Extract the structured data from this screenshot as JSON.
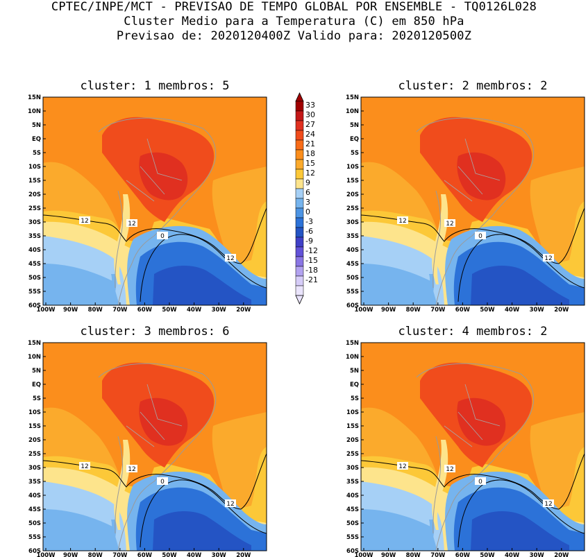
{
  "header": {
    "line1": "CPTEC/INPE/MCT - PREVISAO DE TEMPO GLOBAL POR ENSEMBLE - TQ0126L028",
    "line2": "Cluster Medio para a Temperatura (C) em 850 hPa",
    "line3": "Previsao de: 2020120400Z   Valido para: 2020120500Z"
  },
  "panels": [
    {
      "title": "cluster: 1  membros: 5"
    },
    {
      "title": "cluster: 2  membros: 2"
    },
    {
      "title": "cluster: 3  membros: 6"
    },
    {
      "title": "cluster: 4  membros: 2"
    }
  ],
  "lat_ticks": [
    "15N",
    "10N",
    "5N",
    "EQ",
    "5S",
    "10S",
    "15S",
    "20S",
    "25S",
    "30S",
    "35S",
    "40S",
    "45S",
    "50S",
    "55S",
    "60S"
  ],
  "lon_ticks": [
    "100W",
    "90W",
    "80W",
    "70W",
    "60W",
    "50W",
    "40W",
    "30W",
    "20W"
  ],
  "contour_labels": [
    "12",
    "12",
    "0",
    "12"
  ],
  "colorbar": {
    "labels": [
      "33",
      "30",
      "27",
      "24",
      "21",
      "18",
      "15",
      "12",
      "9",
      "6",
      "3",
      "0",
      "-3",
      "-6",
      "-9",
      "-12",
      "-15",
      "-18",
      "-21"
    ],
    "colors": [
      "#a00000",
      "#c41818",
      "#e03020",
      "#f04c1c",
      "#f86c18",
      "#fb8e1c",
      "#fbaa2c",
      "#fcc838",
      "#fde48c",
      "#a6d0f6",
      "#76b4ee",
      "#4c94e4",
      "#2c72d8",
      "#2454c4",
      "#4040c8",
      "#6252d8",
      "#8a76e4",
      "#b2a2f0",
      "#d6ccf8",
      "#eae4fc"
    ],
    "triangle_top": "#a00000",
    "triangle_bottom": "#eae4fc"
  },
  "colors": {
    "ocean_warm": "#fbaa2c",
    "ocean_mid": "#fcc838",
    "land_hot": "#f04c1c",
    "land_core": "#e03020",
    "cool_water": "#76b4ee",
    "cold_water": "#2c72d8",
    "coldest": "#2454c4",
    "tropical": "#fb8e1c",
    "pale": "#fde48c",
    "lightblue": "#a6d0f6"
  }
}
